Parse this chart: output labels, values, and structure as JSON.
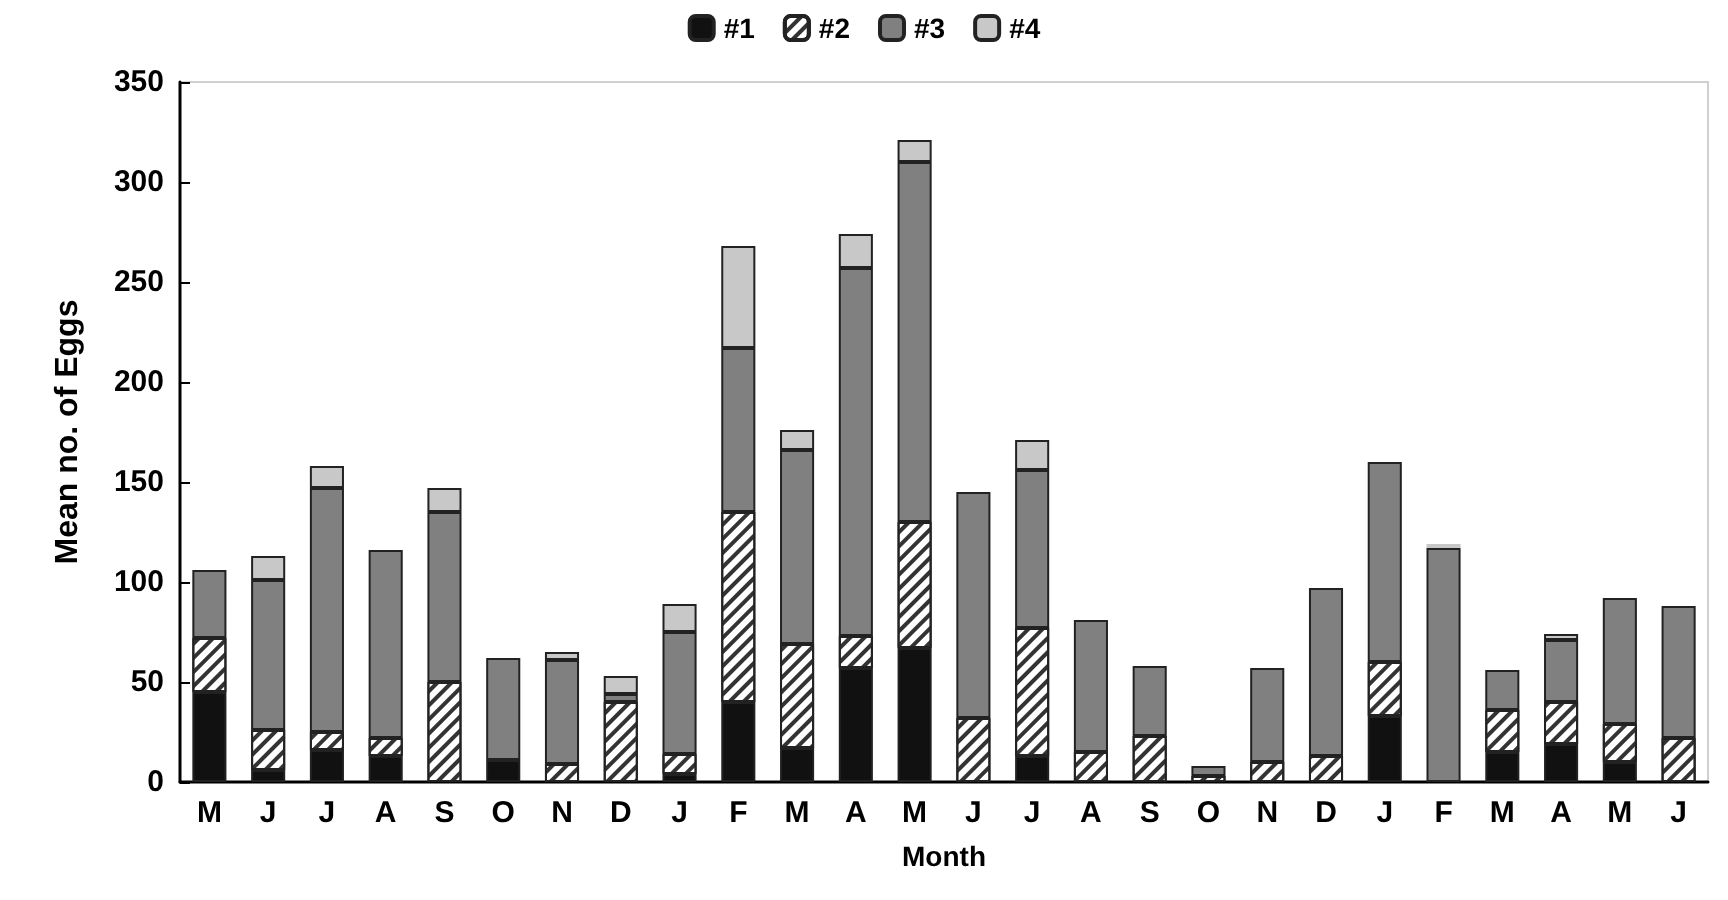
{
  "chart_data": {
    "type": "bar",
    "stacked": true,
    "xlabel": "Month",
    "ylabel": "Mean no. of Eggs",
    "legend": "top",
    "grid": false,
    "categories": [
      "M",
      "J",
      "J",
      "A",
      "S",
      "O",
      "N",
      "D",
      "J",
      "F",
      "M",
      "A",
      "M",
      "J",
      "J",
      "A",
      "S",
      "O",
      "N",
      "D",
      "J",
      "F",
      "M",
      "A",
      "M",
      "J"
    ],
    "ylim": [
      0,
      350
    ],
    "yticks": [
      0,
      50,
      100,
      150,
      200,
      250,
      300,
      350
    ],
    "series": [
      {
        "name": "#1",
        "color": "#111111",
        "values": [
          45,
          6,
          16,
          13,
          0,
          11,
          0,
          0,
          4,
          40,
          17,
          57,
          67,
          0,
          13,
          0,
          null,
          0,
          0,
          0,
          33,
          0,
          15,
          19,
          10,
          0
        ]
      },
      {
        "name": "#2",
        "color": "#ffffff",
        "values": [
          27,
          20,
          9,
          9,
          50,
          0,
          9,
          40,
          10,
          95,
          52,
          16,
          63,
          32,
          64,
          15,
          23,
          3,
          10,
          13,
          27,
          0,
          21,
          21,
          19,
          22
        ]
      },
      {
        "name": "#3",
        "color": "#808080",
        "values": [
          34,
          75,
          122,
          94,
          85,
          51,
          52,
          4,
          61,
          82,
          97,
          184,
          180,
          113,
          79,
          66,
          35,
          5,
          47,
          84,
          100,
          117,
          20,
          31,
          63,
          66
        ]
      },
      {
        "name": "#4",
        "color": "#c8c8c8",
        "values": [
          0,
          12,
          11,
          0,
          12,
          0,
          4,
          9,
          14,
          51,
          10,
          17,
          11,
          0,
          15,
          0,
          0,
          0,
          0,
          null,
          0,
          2,
          0,
          3,
          0,
          0
        ]
      }
    ]
  }
}
